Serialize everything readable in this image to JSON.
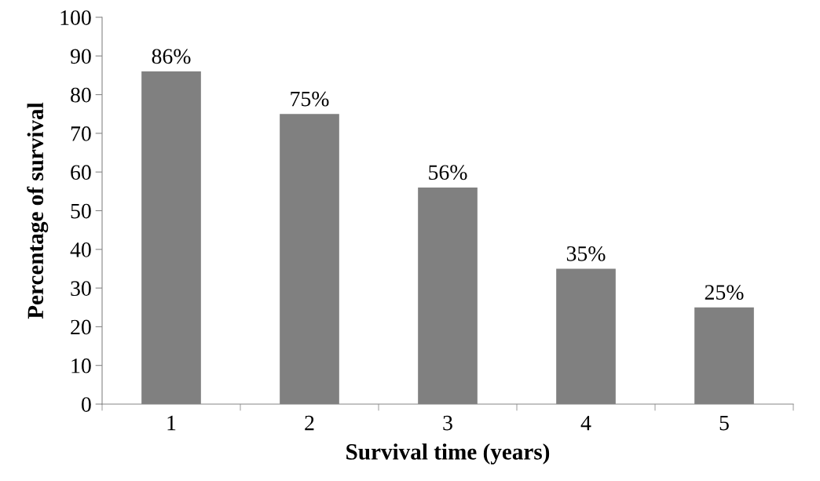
{
  "chart_data": {
    "type": "bar",
    "xlabel": "Survival time (years)",
    "ylabel": "Percentage of survival",
    "categories": [
      "1",
      "2",
      "3",
      "4",
      "5"
    ],
    "values": [
      86,
      75,
      56,
      35,
      25
    ],
    "value_labels": [
      "86%",
      "75%",
      "56%",
      "35%",
      "25%"
    ],
    "color": "#808080",
    "ylim": [
      0,
      100
    ],
    "yticks": [
      0,
      10,
      20,
      30,
      40,
      50,
      60,
      70,
      80,
      90,
      100
    ],
    "grid": false,
    "legend": false
  }
}
